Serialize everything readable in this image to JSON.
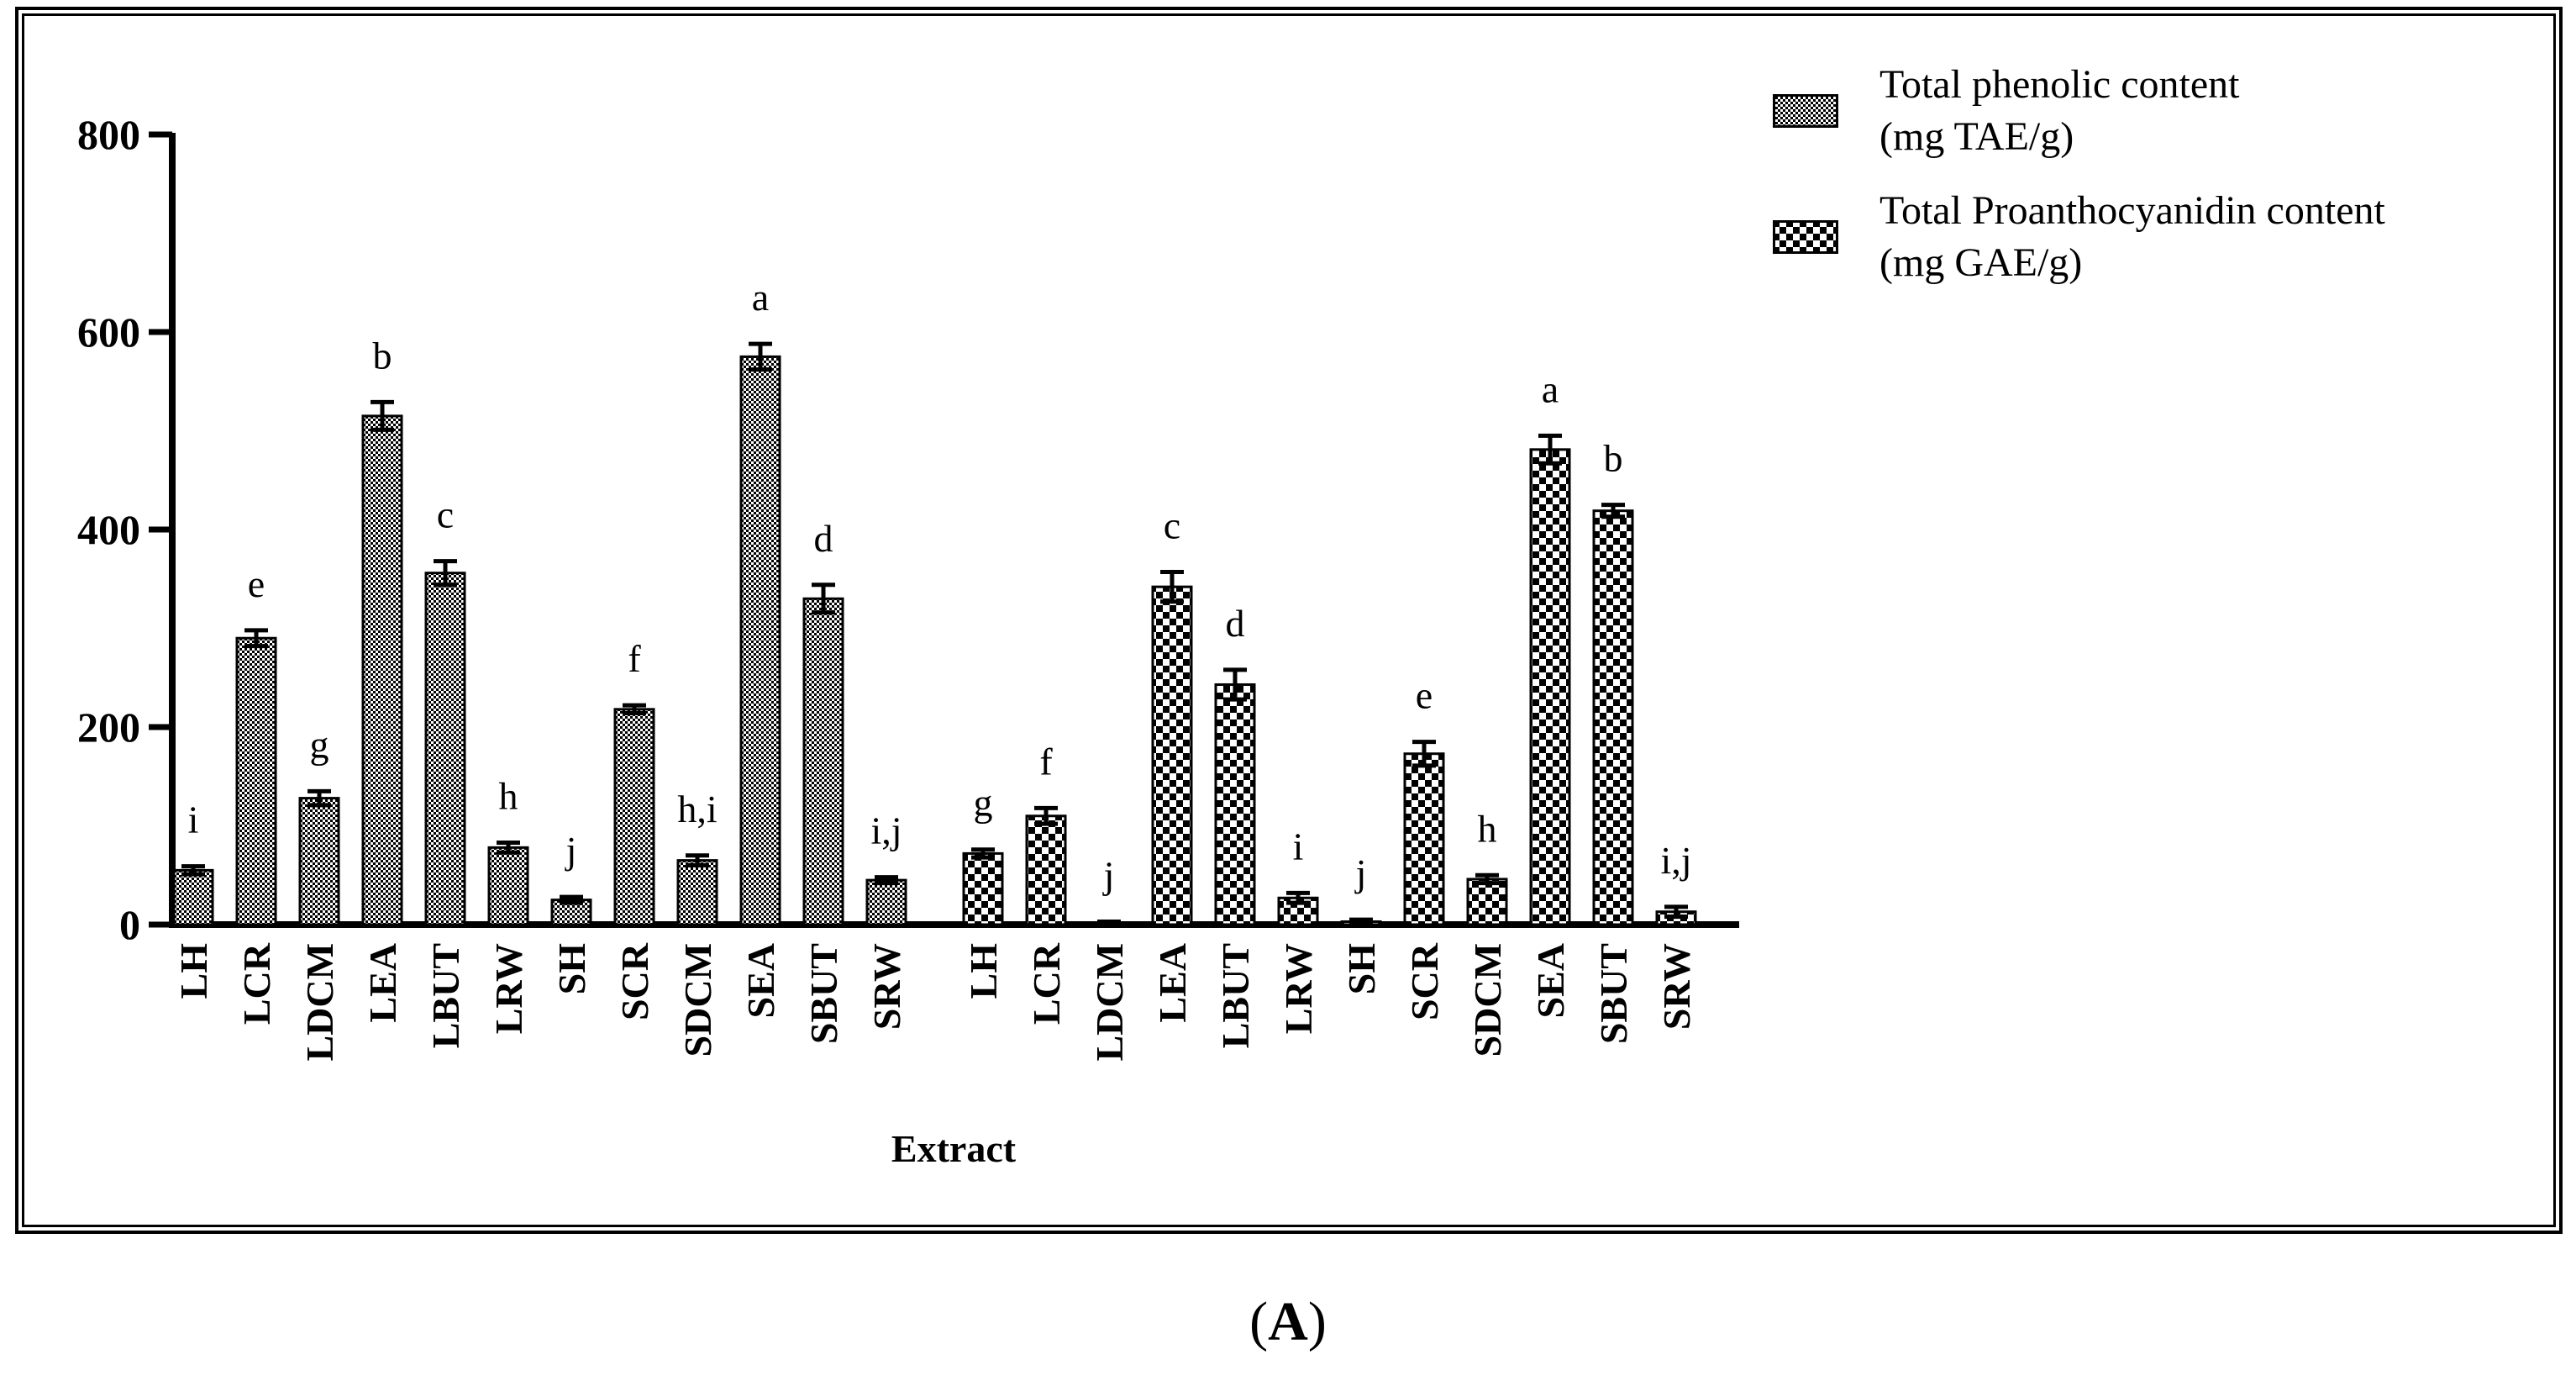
{
  "panel_label": {
    "open": "(",
    "letter": "A",
    "close": ")"
  },
  "legend": [
    {
      "line1": "Total phenolic content",
      "line2": "(mg TAE/g)",
      "pattern": "fine-check"
    },
    {
      "line1": "Total Proanthocyanidin content",
      "line2": "(mg GAE/g)",
      "pattern": "coarse-check"
    }
  ],
  "chart_data": {
    "type": "bar",
    "title": "",
    "xlabel": "Extract",
    "ylabel": "",
    "ylim": [
      0,
      800
    ],
    "yticks": [
      0,
      200,
      400,
      600,
      800
    ],
    "series": [
      {
        "name": "Total phenolic content (mg TAE/g)",
        "categories": [
          "LH",
          "LCR",
          "LDCM",
          "LEA",
          "LBUT",
          "LRW",
          "SH",
          "SCR",
          "SDCM",
          "SEA",
          "SBUT",
          "SRW"
        ],
        "values": [
          55,
          290,
          128,
          515,
          356,
          78,
          25,
          218,
          65,
          575,
          330,
          45
        ],
        "errors": [
          4,
          8,
          7,
          14,
          12,
          5,
          3,
          4,
          5,
          13,
          14,
          3
        ],
        "letters": [
          "i",
          "e",
          "g",
          "b",
          "c",
          "h",
          "j",
          "f",
          "h,i",
          "a",
          "d",
          "i,j"
        ]
      },
      {
        "name": "Total Proanthocyanidin content (mg GAE/g)",
        "categories": [
          "LH",
          "LCR",
          "LDCM",
          "LEA",
          "LBUT",
          "LRW",
          "SH",
          "SCR",
          "SDCM",
          "SEA",
          "SBUT",
          "SRW"
        ],
        "values": [
          72,
          110,
          2,
          342,
          243,
          27,
          3,
          173,
          46,
          481,
          419,
          13
        ],
        "errors": [
          4,
          8,
          1,
          15,
          15,
          5,
          2,
          12,
          4,
          14,
          6,
          5
        ],
        "letters": [
          "g",
          "f",
          "j",
          "c",
          "d",
          "i",
          "j",
          "e",
          "h",
          "a",
          "b",
          "i,j"
        ]
      }
    ]
  }
}
